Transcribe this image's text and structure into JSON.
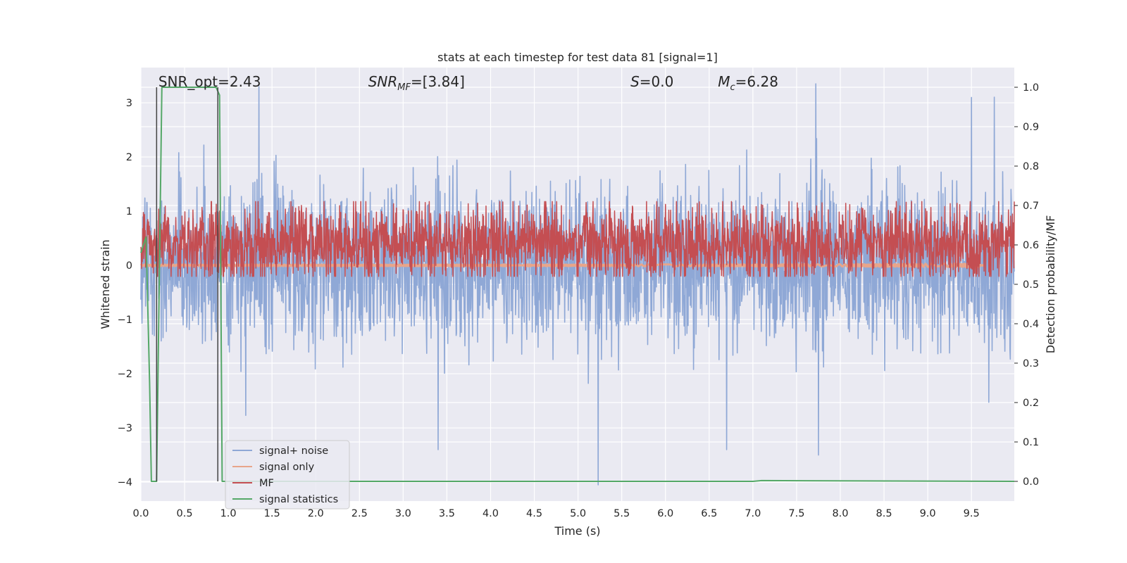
{
  "chart_data": {
    "type": "line",
    "title": "stats at each timestep for test data 81 [signal=1]",
    "xlabel": "Time (s)",
    "ylabel": "Whitened strain",
    "y2label": "Detection probability/MF",
    "xlim": [
      0.0,
      9.99
    ],
    "ylim": [
      -4.35,
      3.65
    ],
    "y2lim": [
      -0.05,
      1.05
    ],
    "grid": true,
    "legend_position": "lower-left",
    "x_ticks": [
      0.0,
      0.5,
      1.0,
      1.5,
      2.0,
      2.5,
      3.0,
      3.5,
      4.0,
      4.5,
      5.0,
      5.5,
      6.0,
      6.5,
      7.0,
      7.5,
      8.0,
      8.5,
      9.0,
      9.5
    ],
    "x_tick_labels": [
      "0.0",
      "0.5",
      "1.0",
      "1.5",
      "2.0",
      "2.5",
      "3.0",
      "3.5",
      "4.0",
      "4.5",
      "5.0",
      "5.5",
      "6.0",
      "6.5",
      "7.0",
      "7.5",
      "8.0",
      "8.5",
      "9.0",
      "9.5"
    ],
    "y_ticks": [
      3,
      2,
      1,
      0,
      -1,
      -2,
      -3,
      -4
    ],
    "y_tick_labels": [
      "3",
      "2",
      "1",
      "0",
      "−1",
      "−2",
      "−3",
      "−4"
    ],
    "y2_ticks": [
      1.0,
      0.9,
      0.8,
      0.7,
      0.6,
      0.5,
      0.4,
      0.3,
      0.2,
      0.1,
      0.0
    ],
    "y2_tick_labels": [
      "1.0",
      "0.9",
      "0.8",
      "0.7",
      "0.6",
      "0.5",
      "0.4",
      "0.3",
      "0.2",
      "0.1",
      "0.0"
    ],
    "annotations": [
      {
        "text": "SNR_opt=2.43",
        "x": 0.2
      },
      {
        "html": "<tspan font-style='italic'>SNR</tspan><tspan font-style='italic' font-size='13' dy='5'>MF</tspan><tspan dy='-5'>=[3.84]</tspan>",
        "text": "SNR_MF=[3.84]",
        "x": 2.6
      },
      {
        "html": "<tspan font-style='italic'>S</tspan><tspan>=0.0</tspan>",
        "text": "S=0.0",
        "x": 5.6
      },
      {
        "html": "<tspan font-style='italic'>M</tspan><tspan font-style='italic' font-size='13' dy='5'>c</tspan><tspan dy='-5'>=6.28</tspan>",
        "text": "Mc=6.28",
        "x": 6.6
      }
    ],
    "vlines": [
      0.18,
      0.88
    ],
    "series": [
      {
        "name": "signal+ noise",
        "color": "#8fa8d6",
        "axis": "left",
        "kind": "noise",
        "amplitude": 1.1,
        "peaks": [
          [
            5.23,
            -4.05
          ],
          [
            3.4,
            -3.4
          ],
          [
            7.75,
            -3.5
          ],
          [
            6.7,
            -3.4
          ],
          [
            9.5,
            3.1
          ],
          [
            7.72,
            3.35
          ],
          [
            1.35,
            3.3
          ]
        ]
      },
      {
        "name": "signal only",
        "color": "#e8a58a",
        "axis": "left",
        "kind": "chirp",
        "end": 9.65
      },
      {
        "name": "MF",
        "color": "#c44e52",
        "axis": "right",
        "kind": "mf",
        "base": 0.6,
        "spread": 0.12
      },
      {
        "name": "signal statistics",
        "color": "#55a868",
        "axis": "right",
        "kind": "step",
        "x": [
          0.0,
          0.06,
          0.1,
          0.12,
          0.18,
          0.24,
          0.86,
          0.9,
          0.93,
          7.0,
          7.1,
          9.99
        ],
        "y": [
          0.58,
          0.62,
          0.25,
          0.0,
          0.0,
          1.0,
          1.0,
          0.98,
          0.0,
          0.0,
          0.002,
          0.0
        ]
      }
    ]
  }
}
